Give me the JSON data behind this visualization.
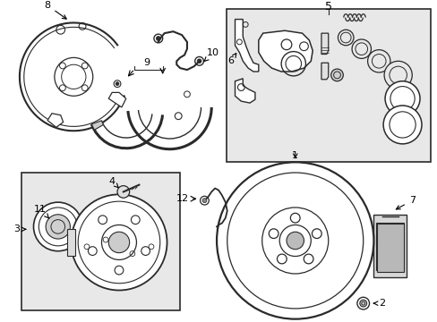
{
  "bg_color": "#ffffff",
  "line_color": "#2a2a2a",
  "box_bg": "#e8e8e8",
  "figsize": [
    4.89,
    3.6
  ],
  "dpi": 100
}
